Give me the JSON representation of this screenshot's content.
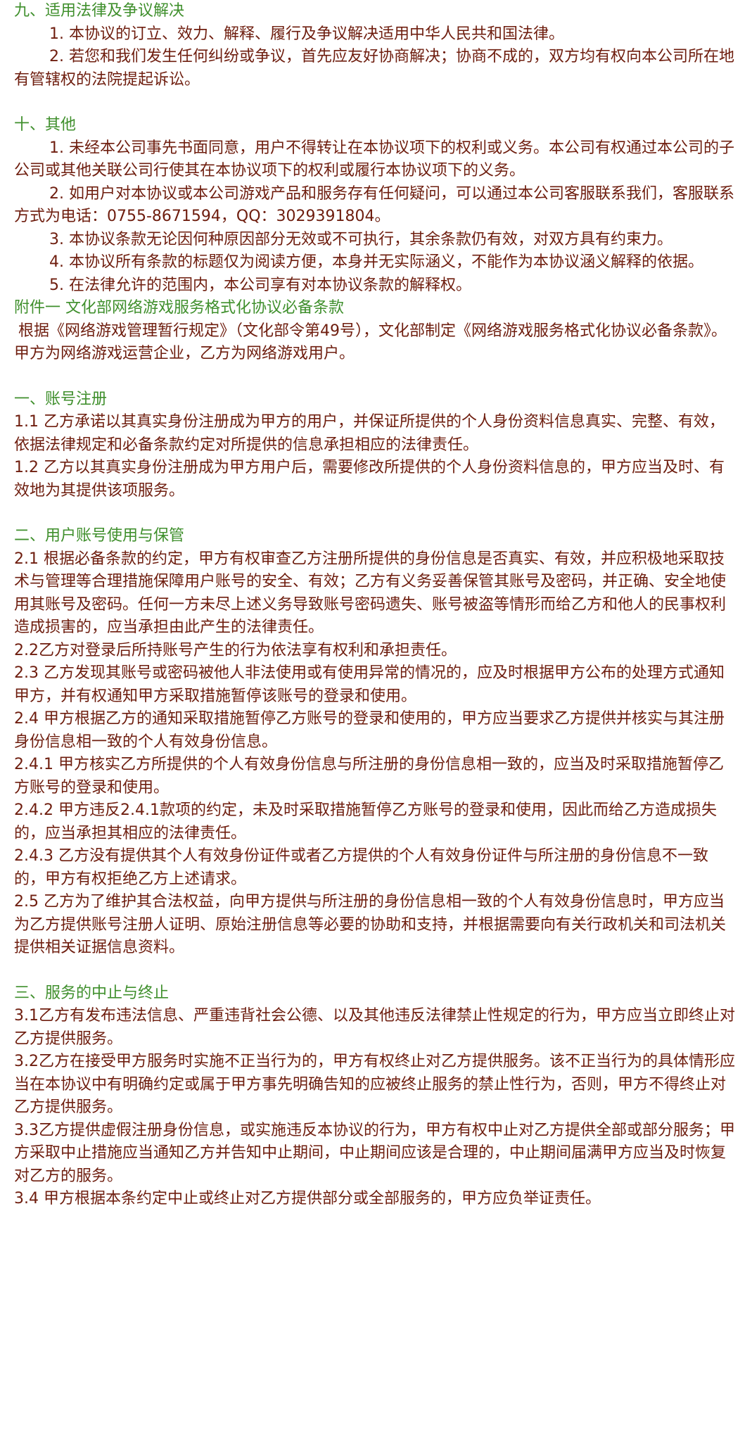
{
  "colors": {
    "heading": "#3f8f2c",
    "body": "#6e1d0e"
  },
  "sections": [
    {
      "heading": "九、适用法律及争议解决",
      "style": "indent",
      "gap": false,
      "paragraphs": [
        "1. 本协议的订立、效力、解释、履行及争议解决适用中华人民共和国法律。",
        "2. 若您和我们发生任何纠纷或争议，首先应友好协商解决；协商不成的，双方均有权向本公司所在地有管辖权的法院提起诉讼。"
      ]
    },
    {
      "heading": "十、其他",
      "style": "indent",
      "gap": true,
      "paragraphs": [
        "1. 未经本公司事先书面同意，用户不得转让在本协议项下的权利或义务。本公司有权通过本公司的子公司或其他关联公司行使其在本协议项下的权利或履行本协议项下的义务。",
        "2. 如用户对本协议或本公司游戏产品和服务存有任何疑问，可以通过本公司客服联系我们，客服联系方式为电话：0755-8671594，QQ：3029391804。",
        "3. 本协议条款无论因何种原因部分无效或不可执行，其余条款仍有效，对双方具有约束力。",
        "4. 本协议所有条款的标题仅为阅读方便，本身并无实际涵义，不能作为本协议涵义解释的依据。",
        "5. 在法律允许的范围内，本公司享有对本协议条款的解释权。"
      ]
    },
    {
      "heading": "附件一  文化部网络游戏服务格式化协议必备条款",
      "style": "lead",
      "gap": false,
      "paragraphs": [
        "根据《网络游戏管理暂行规定》（文化部令第49号），文化部制定《网络游戏服务格式化协议必备条款》。甲方为网络游戏运营企业，乙方为网络游戏用户。"
      ]
    },
    {
      "heading": "一、账号注册",
      "style": "plain",
      "gap": true,
      "paragraphs": [
        "1.1 乙方承诺以其真实身份注册成为甲方的用户，并保证所提供的个人身份资料信息真实、完整、有效，依据法律规定和必备条款约定对所提供的信息承担相应的法律责任。",
        "1.2 乙方以其真实身份注册成为甲方用户后，需要修改所提供的个人身份资料信息的，甲方应当及时、有效地为其提供该项服务。"
      ]
    },
    {
      "heading": "二、用户账号使用与保管",
      "style": "plain",
      "gap": true,
      "paragraphs": [
        "2.1 根据必备条款的约定，甲方有权审查乙方注册所提供的身份信息是否真实、有效，并应积极地采取技术与管理等合理措施保障用户账号的安全、有效；乙方有义务妥善保管其账号及密码，并正确、安全地使用其账号及密码。任何一方未尽上述义务导致账号密码遗失、账号被盗等情形而给乙方和他人的民事权利造成损害的，应当承担由此产生的法律责任。",
        "2.2乙方对登录后所持账号产生的行为依法享有权利和承担责任。",
        "2.3 乙方发现其账号或密码被他人非法使用或有使用异常的情况的，应及时根据甲方公布的处理方式通知甲方，并有权通知甲方采取措施暂停该账号的登录和使用。",
        "2.4 甲方根据乙方的通知采取措施暂停乙方账号的登录和使用的，甲方应当要求乙方提供并核实与其注册身份信息相一致的个人有效身份信息。",
        "2.4.1 甲方核实乙方所提供的个人有效身份信息与所注册的身份信息相一致的，应当及时采取措施暂停乙方账号的登录和使用。",
        "2.4.2 甲方违反2.4.1款项的约定，未及时采取措施暂停乙方账号的登录和使用，因此而给乙方造成损失的，应当承担其相应的法律责任。",
        "2.4.3 乙方没有提供其个人有效身份证件或者乙方提供的个人有效身份证件与所注册的身份信息不一致的，甲方有权拒绝乙方上述请求。",
        "2.5 乙方为了维护其合法权益，向甲方提供与所注册的身份信息相一致的个人有效身份信息时，甲方应当为乙方提供账号注册人证明、原始注册信息等必要的协助和支持，并根据需要向有关行政机关和司法机关提供相关证据信息资料。"
      ]
    },
    {
      "heading": "三、服务的中止与终止",
      "style": "plain",
      "gap": true,
      "paragraphs": [
        "3.1乙方有发布违法信息、严重违背社会公德、以及其他违反法律禁止性规定的行为，甲方应当立即终止对乙方提供服务。",
        "3.2乙方在接受甲方服务时实施不正当行为的，甲方有权终止对乙方提供服务。该不正当行为的具体情形应当在本协议中有明确约定或属于甲方事先明确告知的应被终止服务的禁止性行为，否则，甲方不得终止对乙方提供服务。",
        "3.3乙方提供虚假注册身份信息，或实施违反本协议的行为，甲方有权中止对乙方提供全部或部分服务；甲方采取中止措施应当通知乙方并告知中止期间，中止期间应该是合理的，中止期间届满甲方应当及时恢复对乙方的服务。",
        "3.4 甲方根据本条约定中止或终止对乙方提供部分或全部服务的，甲方应负举证责任。"
      ]
    }
  ]
}
